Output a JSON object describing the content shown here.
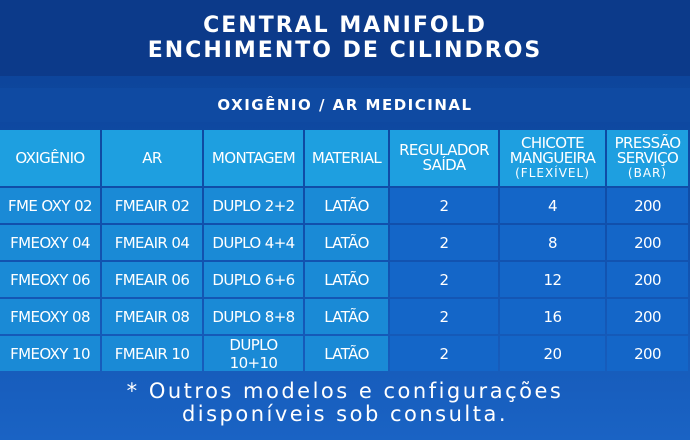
{
  "header": {
    "title": [
      "CENTRAL MANIFOLD",
      "ENCHIMENTO DE CILINDROS"
    ],
    "subtitle": "OXIGÊNIO / AR MEDICINAL"
  },
  "table": {
    "columns": [
      [
        "OXIGÊNIO"
      ],
      [
        "AR"
      ],
      [
        "MONTAGEM"
      ],
      [
        "MATERIAL"
      ],
      [
        "REGULADOR",
        "SAÍDA"
      ],
      [
        "CHICOTE",
        "MANGUEIRA",
        "(FLEXÍVEL)"
      ],
      [
        "PRESSÃO",
        "SERVIÇO",
        "(BAR)"
      ]
    ],
    "rows": [
      [
        "FME OXY 02",
        "FMEAIR 02",
        "DUPLO 2+2",
        "LATÃO",
        2,
        4,
        200
      ],
      [
        "FMEOXY 04",
        "FMEAIR 04",
        "DUPLO 4+4",
        "LATÃO",
        2,
        8,
        200
      ],
      [
        "FMEOXY 06",
        "FMEAIR 06",
        "DUPLO 6+6",
        "LATÃO",
        2,
        12,
        200
      ],
      [
        "FMEOXY 08",
        "FMEAIR 08",
        "DUPLO 8+8",
        "LATÃO",
        2,
        16,
        200
      ],
      [
        "FMEOXY 10",
        "FMEAIR 10",
        "DUPLO 10+10",
        "LATÃO",
        2,
        20,
        200
      ]
    ]
  },
  "footer": [
    "* Outros modelos e configurações",
    "disponíveis sob consulta."
  ]
}
